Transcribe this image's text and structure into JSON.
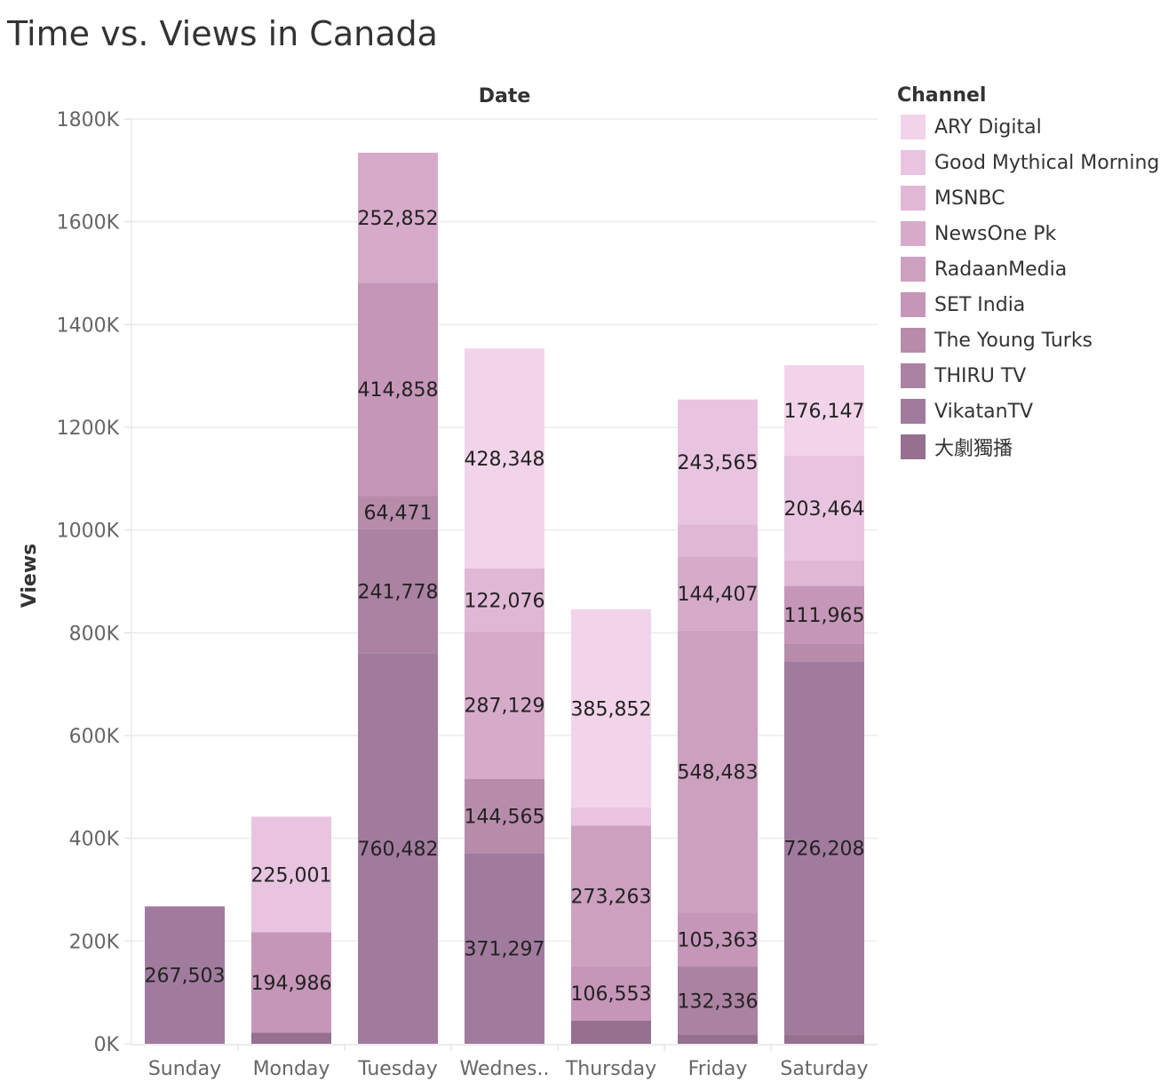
{
  "chart_data": {
    "type": "bar",
    "stacked": true,
    "title": "Time vs. Views in Canada",
    "column_header": "Date",
    "ylabel": "Views",
    "ylim": [
      0,
      1800000
    ],
    "y_ticks": [
      0,
      200000,
      400000,
      600000,
      800000,
      1000000,
      1200000,
      1400000,
      1600000,
      1800000
    ],
    "y_tick_labels": [
      "0K",
      "200K",
      "400K",
      "600K",
      "800K",
      "1000K",
      "1200K",
      "1400K",
      "1600K",
      "1800K"
    ],
    "categories": [
      "Sunday",
      "Monday",
      "Tuesday",
      "Wednes..",
      "Thursday",
      "Friday",
      "Saturday"
    ],
    "grid": true,
    "legend_position": "right",
    "legend_title": "Channel",
    "series": [
      {
        "name": "ARY Digital",
        "color": "#f2d4ea"
      },
      {
        "name": "Good Mythical Morning",
        "color": "#e8c4e0"
      },
      {
        "name": "MSNBC",
        "color": "#e0b8d6"
      },
      {
        "name": "NewsOne Pk",
        "color": "#d6abca"
      },
      {
        "name": "RadaanMedia",
        "color": "#cda0c0"
      },
      {
        "name": "SET India",
        "color": "#c596b8"
      },
      {
        "name": "The Young Turks",
        "color": "#b78cab"
      },
      {
        "name": "THIRU TV",
        "color": "#ab82a2"
      },
      {
        "name": "VikatanTV",
        "color": "#a17b9e"
      },
      {
        "name": "大劇獨播",
        "color": "#95708f"
      }
    ],
    "stacks": [
      {
        "category": "Sunday",
        "segments": [
          {
            "series": "VikatanTV",
            "value": 267503,
            "label": "267,503"
          }
        ]
      },
      {
        "category": "Monday",
        "segments": [
          {
            "series": "大劇獨播",
            "value": 22000,
            "label": ""
          },
          {
            "series": "SET India",
            "value": 194986,
            "label": "194,986"
          },
          {
            "series": "Good Mythical Morning",
            "value": 225001,
            "label": "225,001"
          }
        ]
      },
      {
        "category": "Tuesday",
        "segments": [
          {
            "series": "VikatanTV",
            "value": 760482,
            "label": "760,482"
          },
          {
            "series": "THIRU TV",
            "value": 241778,
            "label": "241,778"
          },
          {
            "series": "The Young Turks",
            "value": 64471,
            "label": "64,471"
          },
          {
            "series": "SET India",
            "value": 414858,
            "label": "414,858"
          },
          {
            "series": "NewsOne Pk",
            "value": 252852,
            "label": "252,852"
          }
        ]
      },
      {
        "category": "Wednes..",
        "segments": [
          {
            "series": "VikatanTV",
            "value": 371297,
            "label": "371,297"
          },
          {
            "series": "The Young Turks",
            "value": 144565,
            "label": "144,565"
          },
          {
            "series": "NewsOne Pk",
            "value": 287129,
            "label": "287,129"
          },
          {
            "series": "MSNBC",
            "value": 122076,
            "label": "122,076"
          },
          {
            "series": "ARY Digital",
            "value": 428348,
            "label": "428,348"
          }
        ]
      },
      {
        "category": "Thursday",
        "segments": [
          {
            "series": "大劇獨播",
            "value": 45000,
            "label": ""
          },
          {
            "series": "SET India",
            "value": 106553,
            "label": "106,553"
          },
          {
            "series": "RadaanMedia",
            "value": 273263,
            "label": "273,263"
          },
          {
            "series": "Good Mythical Morning",
            "value": 35000,
            "label": ""
          },
          {
            "series": "ARY Digital",
            "value": 385852,
            "label": "385,852"
          }
        ]
      },
      {
        "category": "Friday",
        "segments": [
          {
            "series": "大劇獨播",
            "value": 18000,
            "label": ""
          },
          {
            "series": "THIRU TV",
            "value": 132336,
            "label": "132,336"
          },
          {
            "series": "SET India",
            "value": 105363,
            "label": "105,363"
          },
          {
            "series": "RadaanMedia",
            "value": 548483,
            "label": "548,483"
          },
          {
            "series": "NewsOne Pk",
            "value": 144407,
            "label": "144,407"
          },
          {
            "series": "MSNBC",
            "value": 62000,
            "label": ""
          },
          {
            "series": "Good Mythical Morning",
            "value": 243565,
            "label": "243,565"
          }
        ]
      },
      {
        "category": "Saturday",
        "segments": [
          {
            "series": "大劇獨播",
            "value": 18000,
            "label": ""
          },
          {
            "series": "VikatanTV",
            "value": 726208,
            "label": "726,208"
          },
          {
            "series": "The Young Turks",
            "value": 35000,
            "label": ""
          },
          {
            "series": "SET India",
            "value": 111965,
            "label": "111,965"
          },
          {
            "series": "MSNBC",
            "value": 50000,
            "label": ""
          },
          {
            "series": "Good Mythical Morning",
            "value": 203464,
            "label": "203,464"
          },
          {
            "series": "ARY Digital",
            "value": 176147,
            "label": "176,147"
          }
        ]
      }
    ]
  }
}
